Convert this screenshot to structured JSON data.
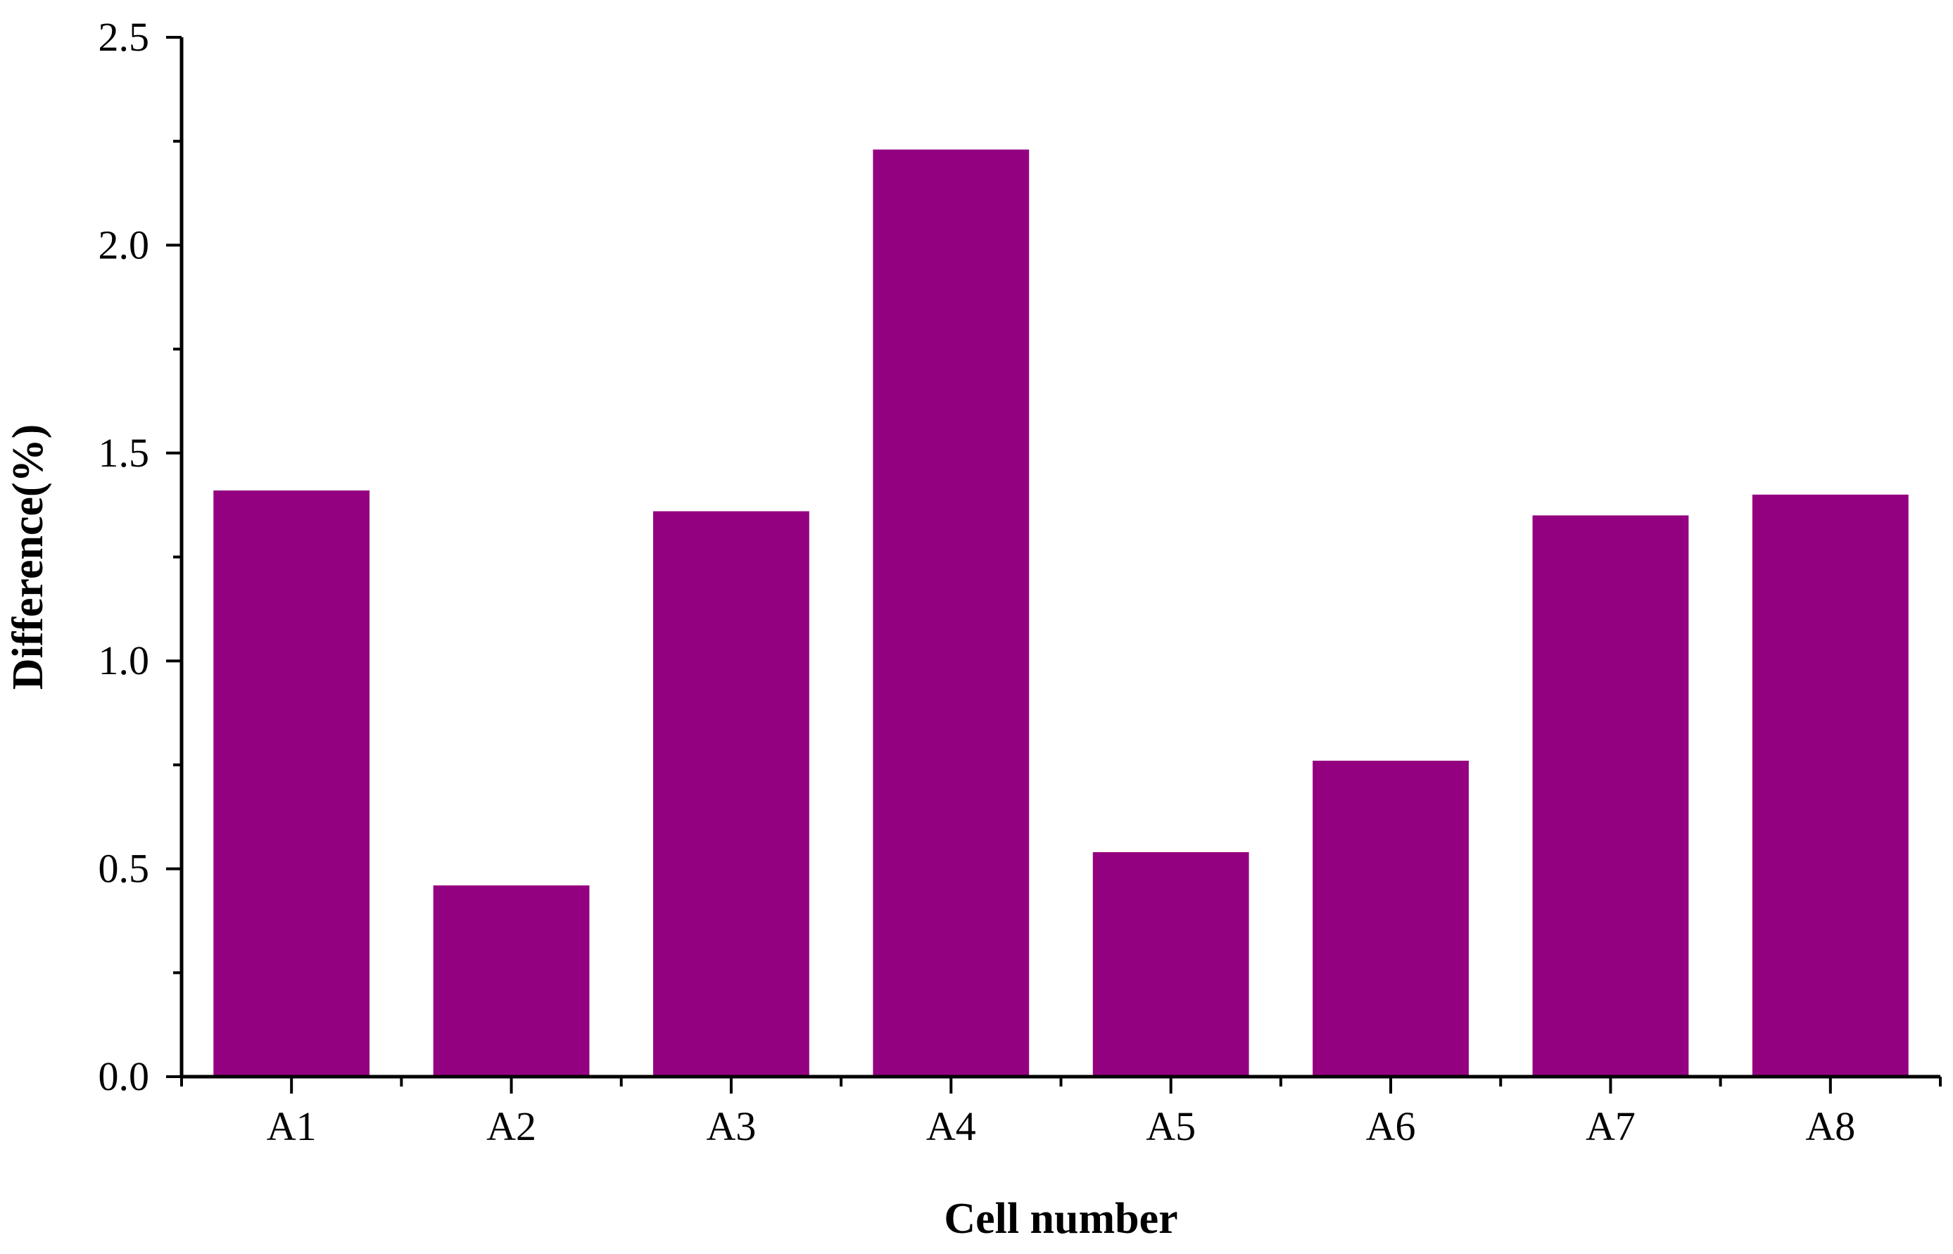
{
  "chart_data": {
    "type": "bar",
    "categories": [
      "A1",
      "A2",
      "A3",
      "A4",
      "A5",
      "A6",
      "A7",
      "A8"
    ],
    "values": [
      1.41,
      0.46,
      1.36,
      2.23,
      0.54,
      0.76,
      1.35,
      1.4
    ],
    "xlabel": "Cell number",
    "ylabel": "Difference(%)",
    "ylim": [
      0,
      2.5
    ],
    "yticks": [
      "0.0",
      "0.5",
      "1.0",
      "1.5",
      "2.0",
      "2.5"
    ],
    "bar_color": "#940180",
    "grid": false,
    "legend": "none"
  }
}
